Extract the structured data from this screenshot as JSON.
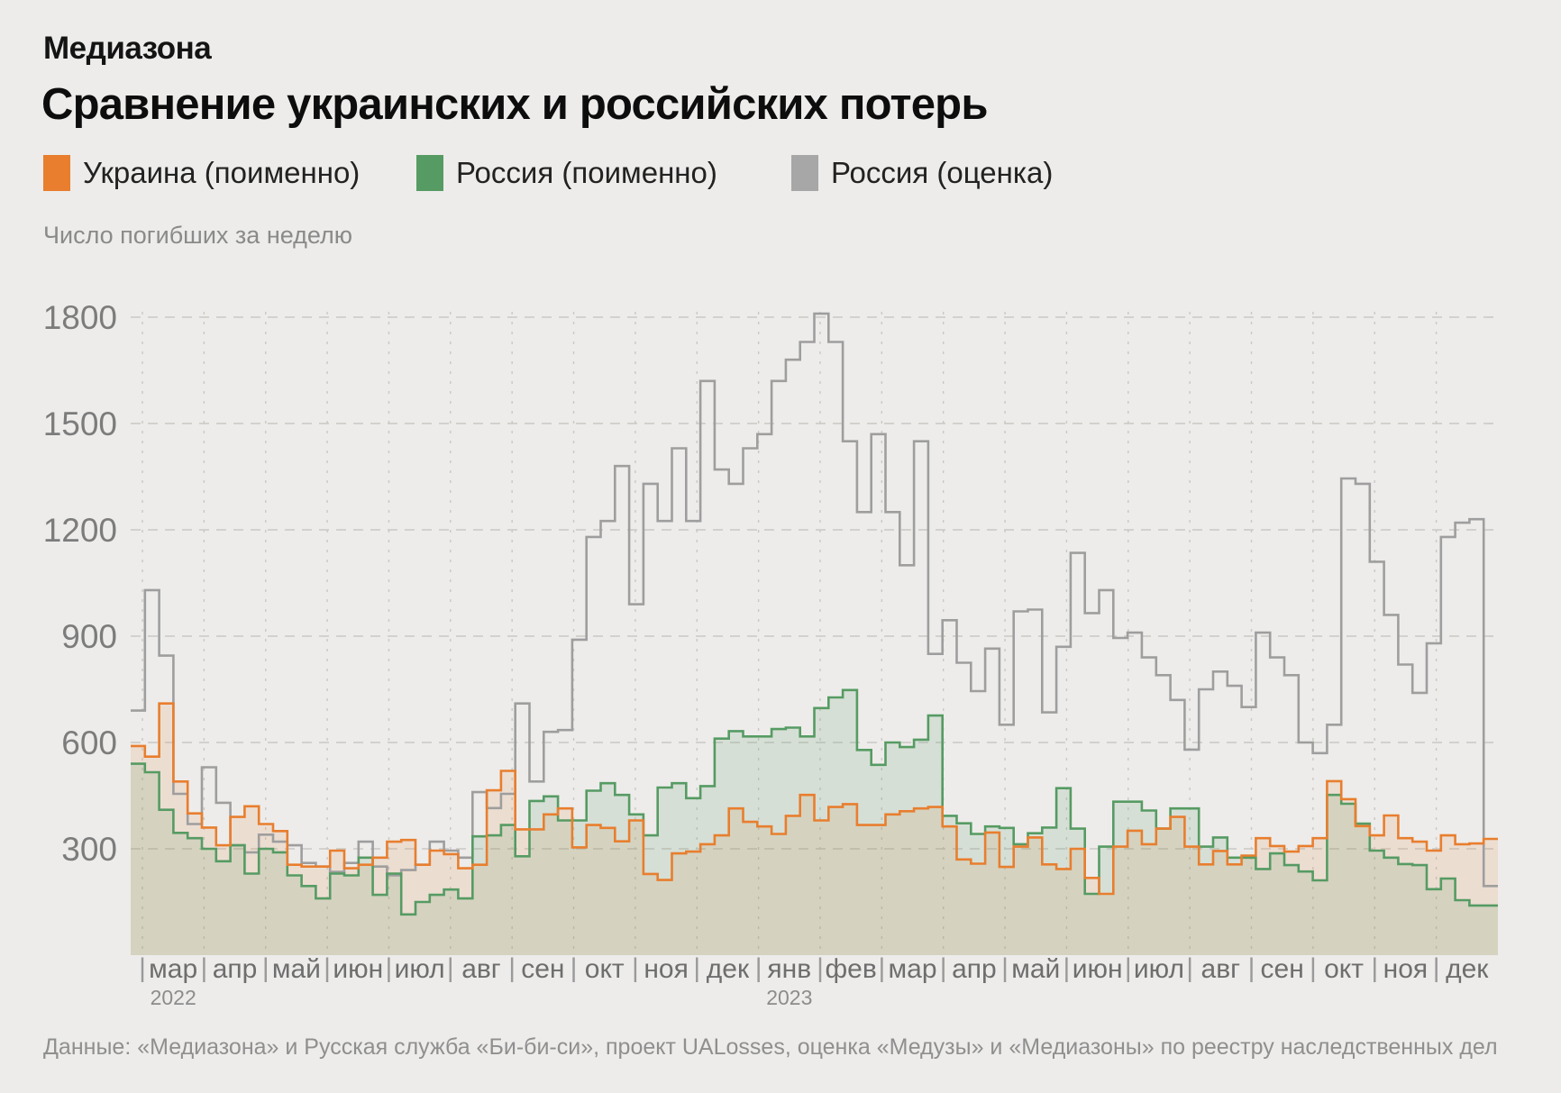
{
  "header": {
    "brand": "Медиазона",
    "title": "Сравнение украинских и российских потерь"
  },
  "legend": [
    {
      "label": "Украина (поименно)",
      "color": "#e87e2e"
    },
    {
      "label": "Россия (поименно)",
      "color": "#569b63"
    },
    {
      "label": "Россия (оценка)",
      "color": "#a7a7a7"
    }
  ],
  "unit_label": "Число погибших за неделю",
  "footer": {
    "source": "Данные: «Медиазона» и Русская служба «Би-би-си», проект UALosses, оценка «Медузы» и «Медиазоны» по реестру наследственных дел"
  },
  "chart_data": {
    "type": "step-area",
    "title": "Сравнение украинских и российских потерь",
    "ylabel": "Число погибших за неделю",
    "x_unit": "week",
    "weeks_total": 96,
    "x_range": "мар 2022 — дек 2023",
    "ylim": [
      0,
      1900
    ],
    "y_ticks": [
      1800,
      1500,
      1200,
      900,
      600,
      300
    ],
    "grid": "dashed",
    "legend_position": "top",
    "months": [
      "мар",
      "апр",
      "май",
      "июн",
      "июл",
      "авг",
      "сен",
      "окт",
      "ноя",
      "дек",
      "янв",
      "фев",
      "мар",
      "апр",
      "май",
      "июн",
      "июл",
      "авг",
      "сен",
      "окт",
      "ноя",
      "дек"
    ],
    "weeks_per_month": [
      5,
      4,
      4,
      5,
      4,
      4,
      5,
      4,
      4,
      5,
      4,
      4,
      5,
      4,
      4,
      5,
      4,
      4,
      5,
      4,
      4,
      5
    ],
    "year_labels": [
      {
        "text": "2022",
        "month_index": 0
      },
      {
        "text": "2023",
        "month_index": 10
      }
    ],
    "series": [
      {
        "name": "Украина (поименно)",
        "color": "#e87e2e",
        "fill": "rgba(232,126,46,0.13)",
        "values": [
          590,
          560,
          710,
          490,
          400,
          360,
          310,
          390,
          420,
          370,
          350,
          255,
          250,
          250,
          295,
          245,
          255,
          275,
          320,
          325,
          255,
          295,
          285,
          245,
          255,
          465,
          520,
          355,
          355,
          397,
          414,
          304,
          367,
          359,
          321,
          380,
          229,
          212,
          287,
          292,
          313,
          338,
          414,
          376,
          363,
          342,
          393,
          452,
          380,
          418,
          426,
          367,
          367,
          397,
          406,
          414,
          418,
          363,
          270,
          258,
          346,
          249,
          306,
          332,
          256,
          243,
          300,
          218,
          173,
          306,
          351,
          313,
          357,
          390,
          306,
          256,
          294,
          256,
          281,
          330,
          308,
          292,
          308,
          330,
          491,
          440,
          364,
          338,
          394,
          330,
          320,
          295,
          338,
          313,
          315,
          328
        ]
      },
      {
        "name": "Россия (поименно)",
        "color": "#569b63",
        "fill": "rgba(86,155,99,0.15)",
        "values": [
          540,
          516,
          410,
          345,
          330,
          300,
          265,
          310,
          230,
          300,
          290,
          225,
          195,
          160,
          230,
          225,
          275,
          170,
          230,
          115,
          150,
          170,
          185,
          160,
          335,
          338,
          367,
          279,
          435,
          448,
          380,
          380,
          464,
          485,
          452,
          397,
          338,
          473,
          485,
          443,
          477,
          611,
          632,
          617,
          617,
          638,
          642,
          617,
          697,
          727,
          748,
          579,
          537,
          600,
          587,
          608,
          676,
          393,
          372,
          342,
          363,
          359,
          313,
          344,
          360,
          471,
          357,
          173,
          306,
          433,
          433,
          408,
          357,
          414,
          414,
          306,
          332,
          275,
          275,
          243,
          287,
          254,
          236,
          211,
          452,
          427,
          371,
          295,
          275,
          257,
          254,
          186,
          216,
          155,
          140,
          140
        ]
      },
      {
        "name": "Россия (оценка)",
        "color": "#9e9e9e",
        "fill": "none",
        "values": [
          690,
          1030,
          845,
          455,
          370,
          530,
          430,
          310,
          290,
          340,
          320,
          310,
          260,
          250,
          235,
          260,
          320,
          250,
          225,
          240,
          255,
          320,
          295,
          275,
          460,
          415,
          455,
          710,
          490,
          630,
          635,
          890,
          1180,
          1225,
          1380,
          990,
          1330,
          1225,
          1430,
          1225,
          1620,
          1370,
          1330,
          1430,
          1470,
          1620,
          1680,
          1730,
          1810,
          1730,
          1450,
          1250,
          1470,
          1250,
          1100,
          1450,
          850,
          945,
          825,
          745,
          865,
          650,
          970,
          975,
          685,
          870,
          1135,
          965,
          1030,
          895,
          910,
          840,
          790,
          720,
          580,
          750,
          800,
          760,
          700,
          910,
          840,
          790,
          600,
          570,
          650,
          1345,
          1330,
          1110,
          960,
          820,
          740,
          880,
          1180,
          1220,
          1230,
          195
        ]
      }
    ]
  }
}
